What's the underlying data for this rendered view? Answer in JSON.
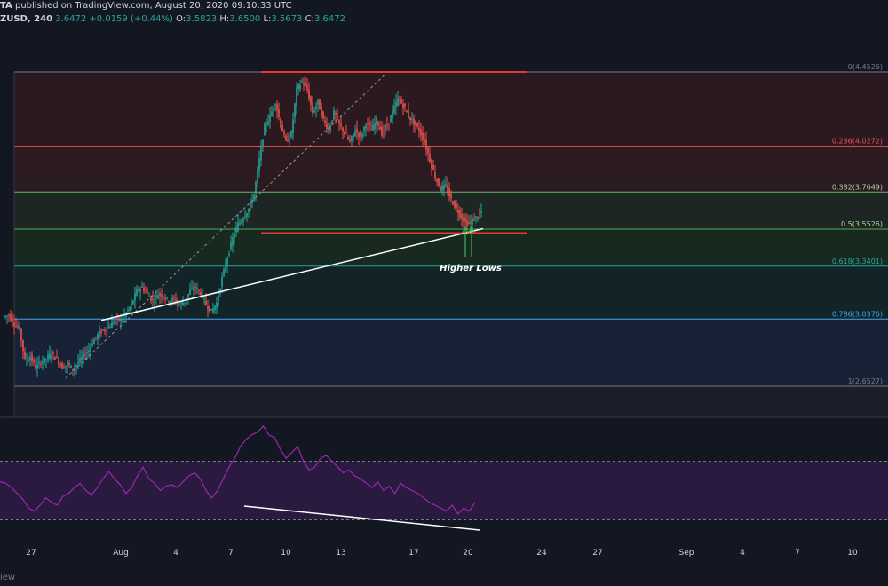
{
  "header": {
    "author": "TA",
    "published": "published on TradingView.com, August 20, 2020 09:10:33 UTC",
    "symbol": "ZUSD, 240",
    "last": "3.6472",
    "change": "+0.0159 (+0.44%)",
    "o_label": "O:",
    "o_value": "3.5823",
    "h_label": "H:",
    "h_value": "3.6500",
    "l_label": "L:",
    "l_value": "3.5673",
    "c_label": "C:",
    "c_value": "3.6472"
  },
  "footer": {
    "watermark": "iew"
  },
  "colors": {
    "background": "#131722",
    "up": "#26a69a",
    "down": "#ef5350",
    "rsi_line": "#9c27b0",
    "rsi_band": "#2a1a3f",
    "resistance": "#e53935",
    "trendline": "#ffffff",
    "arrow": "#4caf50"
  },
  "chart_data": [
    {
      "type": "candlestick",
      "fib_levels": [
        {
          "ratio": 0,
          "price": 4.4526,
          "label": "0(4.4526)",
          "line_color": "#787b86",
          "text_color": "#787b86"
        },
        {
          "ratio": 0.236,
          "price": 4.0272,
          "label": "0.236(4.0272)",
          "line_color": "#ef5350",
          "text_color": "#ef5350",
          "fill": "#2b1a1f"
        },
        {
          "ratio": 0.382,
          "price": 3.7649,
          "label": "0.382(3.7649)",
          "line_color": "#66bb6a",
          "text_color": "#a5d6a7",
          "fill": "#1e2623"
        },
        {
          "ratio": 0.5,
          "price": 3.5526,
          "label": "0.5(3.5526)",
          "line_color": "#4caf50",
          "text_color": "#a5d6a7",
          "fill": "#18291f"
        },
        {
          "ratio": 0.618,
          "price": 3.3401,
          "label": "0.618(3.3401)",
          "line_color": "#26a69a",
          "text_color": "#26a69a",
          "fill": "#122428"
        },
        {
          "ratio": 0.786,
          "price": 3.0376,
          "label": "0.786(3.0376)",
          "line_color": "#42a5f5",
          "text_color": "#42a5f5",
          "fill": "#182236"
        },
        {
          "ratio": 1,
          "price": 2.6527,
          "label": "1(2.6527)",
          "line_color": "#787b86",
          "text_color": "#787b86",
          "fill": "#1c1f2a"
        }
      ],
      "x_ticks": [
        "27",
        "Aug",
        "4",
        "7",
        "10",
        "13",
        "17",
        "20",
        "24",
        "27",
        "Sep",
        "4",
        "7",
        "10"
      ],
      "annotation": "Higher Lows",
      "close_path": [
        [
          0,
          3.05
        ],
        [
          3,
          3.06
        ],
        [
          6,
          3.01
        ],
        [
          9,
          2.98
        ],
        [
          12,
          2.8
        ],
        [
          15,
          2.82
        ],
        [
          18,
          2.76
        ],
        [
          21,
          2.79
        ],
        [
          24,
          2.81
        ],
        [
          27,
          2.84
        ],
        [
          30,
          2.81
        ],
        [
          33,
          2.76
        ],
        [
          36,
          2.78
        ],
        [
          39,
          2.75
        ],
        [
          42,
          2.79
        ],
        [
          45,
          2.83
        ],
        [
          48,
          2.86
        ],
        [
          51,
          2.92
        ],
        [
          54,
          2.96
        ],
        [
          57,
          2.98
        ],
        [
          60,
          3.0
        ],
        [
          63,
          3.04
        ],
        [
          66,
          3.03
        ],
        [
          69,
          3.07
        ],
        [
          72,
          3.12
        ],
        [
          75,
          3.2
        ],
        [
          78,
          3.22
        ],
        [
          81,
          3.18
        ],
        [
          84,
          3.14
        ],
        [
          87,
          3.18
        ],
        [
          90,
          3.17
        ],
        [
          93,
          3.14
        ],
        [
          96,
          3.15
        ],
        [
          99,
          3.12
        ],
        [
          102,
          3.14
        ],
        [
          105,
          3.2
        ],
        [
          108,
          3.22
        ],
        [
          111,
          3.18
        ],
        [
          114,
          3.12
        ],
        [
          117,
          3.08
        ],
        [
          120,
          3.13
        ],
        [
          123,
          3.27
        ],
        [
          126,
          3.39
        ],
        [
          129,
          3.5
        ],
        [
          132,
          3.58
        ],
        [
          135,
          3.62
        ],
        [
          138,
          3.67
        ],
        [
          141,
          3.75
        ],
        [
          144,
          3.95
        ],
        [
          147,
          4.14
        ],
        [
          150,
          4.2
        ],
        [
          153,
          4.28
        ],
        [
          156,
          4.15
        ],
        [
          159,
          4.05
        ],
        [
          162,
          4.1
        ],
        [
          165,
          4.35
        ],
        [
          168,
          4.4
        ],
        [
          171,
          4.35
        ],
        [
          174,
          4.22
        ],
        [
          177,
          4.28
        ],
        [
          180,
          4.18
        ],
        [
          183,
          4.12
        ],
        [
          186,
          4.22
        ],
        [
          189,
          4.15
        ],
        [
          192,
          4.1
        ],
        [
          195,
          4.05
        ],
        [
          198,
          4.12
        ],
        [
          201,
          4.08
        ],
        [
          204,
          4.16
        ],
        [
          207,
          4.12
        ],
        [
          210,
          4.18
        ],
        [
          213,
          4.1
        ],
        [
          216,
          4.15
        ],
        [
          219,
          4.22
        ],
        [
          222,
          4.3
        ],
        [
          225,
          4.26
        ],
        [
          228,
          4.2
        ],
        [
          231,
          4.16
        ],
        [
          234,
          4.12
        ],
        [
          237,
          4.05
        ],
        [
          240,
          3.95
        ],
        [
          243,
          3.85
        ],
        [
          246,
          3.78
        ],
        [
          249,
          3.8
        ],
        [
          252,
          3.72
        ],
        [
          255,
          3.67
        ],
        [
          258,
          3.62
        ],
        [
          261,
          3.58
        ],
        [
          264,
          3.6
        ],
        [
          267,
          3.63
        ],
        [
          269,
          3.65
        ]
      ],
      "resistance_price": 4.4526,
      "support_price": 3.53,
      "trendline": {
        "from": [
          55,
          3.03
        ],
        "to": [
          205,
          3.54
        ]
      }
    },
    {
      "type": "line",
      "name": "RSI",
      "values": [
        56,
        55,
        52,
        48,
        44,
        38,
        36,
        40,
        45,
        42,
        40,
        46,
        48,
        52,
        55,
        50,
        47,
        52,
        58,
        63,
        58,
        54,
        48,
        52,
        60,
        66,
        58,
        55,
        50,
        53,
        54,
        52,
        56,
        60,
        62,
        58,
        50,
        45,
        50,
        58,
        66,
        72,
        80,
        85,
        88,
        90,
        94,
        88,
        86,
        78,
        72,
        76,
        80,
        70,
        64,
        66,
        72,
        74,
        70,
        66,
        62,
        64,
        60,
        58,
        55,
        52,
        56,
        50,
        53,
        48,
        55,
        52,
        50,
        48,
        45,
        42,
        40,
        38,
        36,
        40,
        34,
        38,
        36,
        42
      ]
    }
  ]
}
